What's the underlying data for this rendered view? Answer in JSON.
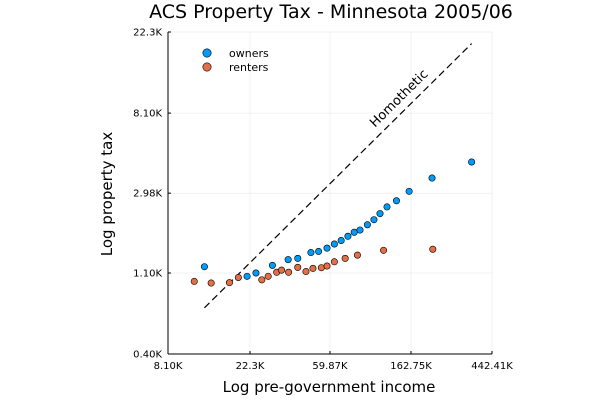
{
  "chart_data": {
    "type": "scatter",
    "title": "ACS Property Tax - Minnesota 2005/06",
    "xlabel": "Log pre-government income",
    "ylabel": "Log property tax",
    "x_scale": "log",
    "y_scale": "log",
    "xlim": [
      8100,
      442410
    ],
    "ylim": [
      400,
      22300
    ],
    "x_ticks": [
      {
        "value": 8100,
        "label": "8.10K"
      },
      {
        "value": 22300,
        "label": "22.3K"
      },
      {
        "value": 59870,
        "label": "59.87K"
      },
      {
        "value": 162750,
        "label": "162.75K"
      },
      {
        "value": 442410,
        "label": "442.41K"
      }
    ],
    "y_ticks": [
      {
        "value": 400,
        "label": "0.40K"
      },
      {
        "value": 1100,
        "label": "1.10K"
      },
      {
        "value": 2980,
        "label": "2.98K"
      },
      {
        "value": 8100,
        "label": "8.10K"
      },
      {
        "value": 22300,
        "label": "22.3K"
      }
    ],
    "grid": true,
    "legend_position": "top-left",
    "series": [
      {
        "name": "owners",
        "color": "#009AFA",
        "points": [
          {
            "x": 12700,
            "y": 1190
          },
          {
            "x": 21500,
            "y": 1055
          },
          {
            "x": 24000,
            "y": 1100
          },
          {
            "x": 29400,
            "y": 1210
          },
          {
            "x": 35700,
            "y": 1300
          },
          {
            "x": 40200,
            "y": 1320
          },
          {
            "x": 47300,
            "y": 1420
          },
          {
            "x": 52000,
            "y": 1440
          },
          {
            "x": 57700,
            "y": 1500
          },
          {
            "x": 63200,
            "y": 1580
          },
          {
            "x": 68700,
            "y": 1650
          },
          {
            "x": 74700,
            "y": 1740
          },
          {
            "x": 80700,
            "y": 1830
          },
          {
            "x": 86700,
            "y": 1880
          },
          {
            "x": 95000,
            "y": 2010
          },
          {
            "x": 103000,
            "y": 2140
          },
          {
            "x": 111000,
            "y": 2310
          },
          {
            "x": 121000,
            "y": 2510
          },
          {
            "x": 136000,
            "y": 2710
          },
          {
            "x": 159000,
            "y": 3050
          },
          {
            "x": 211000,
            "y": 3600
          },
          {
            "x": 344000,
            "y": 4400
          }
        ]
      },
      {
        "name": "renters",
        "color": "#E26F46",
        "points": [
          {
            "x": 11200,
            "y": 990
          },
          {
            "x": 13800,
            "y": 970
          },
          {
            "x": 17300,
            "y": 975
          },
          {
            "x": 19300,
            "y": 1040
          },
          {
            "x": 25800,
            "y": 1010
          },
          {
            "x": 27900,
            "y": 1055
          },
          {
            "x": 31000,
            "y": 1110
          },
          {
            "x": 32900,
            "y": 1140
          },
          {
            "x": 35900,
            "y": 1110
          },
          {
            "x": 40200,
            "y": 1180
          },
          {
            "x": 44500,
            "y": 1120
          },
          {
            "x": 48500,
            "y": 1165
          },
          {
            "x": 53800,
            "y": 1175
          },
          {
            "x": 57700,
            "y": 1200
          },
          {
            "x": 63200,
            "y": 1265
          },
          {
            "x": 72200,
            "y": 1320
          },
          {
            "x": 84000,
            "y": 1375
          },
          {
            "x": 116000,
            "y": 1460
          },
          {
            "x": 213000,
            "y": 1480
          }
        ]
      }
    ],
    "reference_line": {
      "label": "Homothetic",
      "style": "dashed",
      "color": "#000000",
      "from": {
        "x": 12700,
        "y": 712
      },
      "to": {
        "x": 344000,
        "y": 19300
      }
    }
  }
}
